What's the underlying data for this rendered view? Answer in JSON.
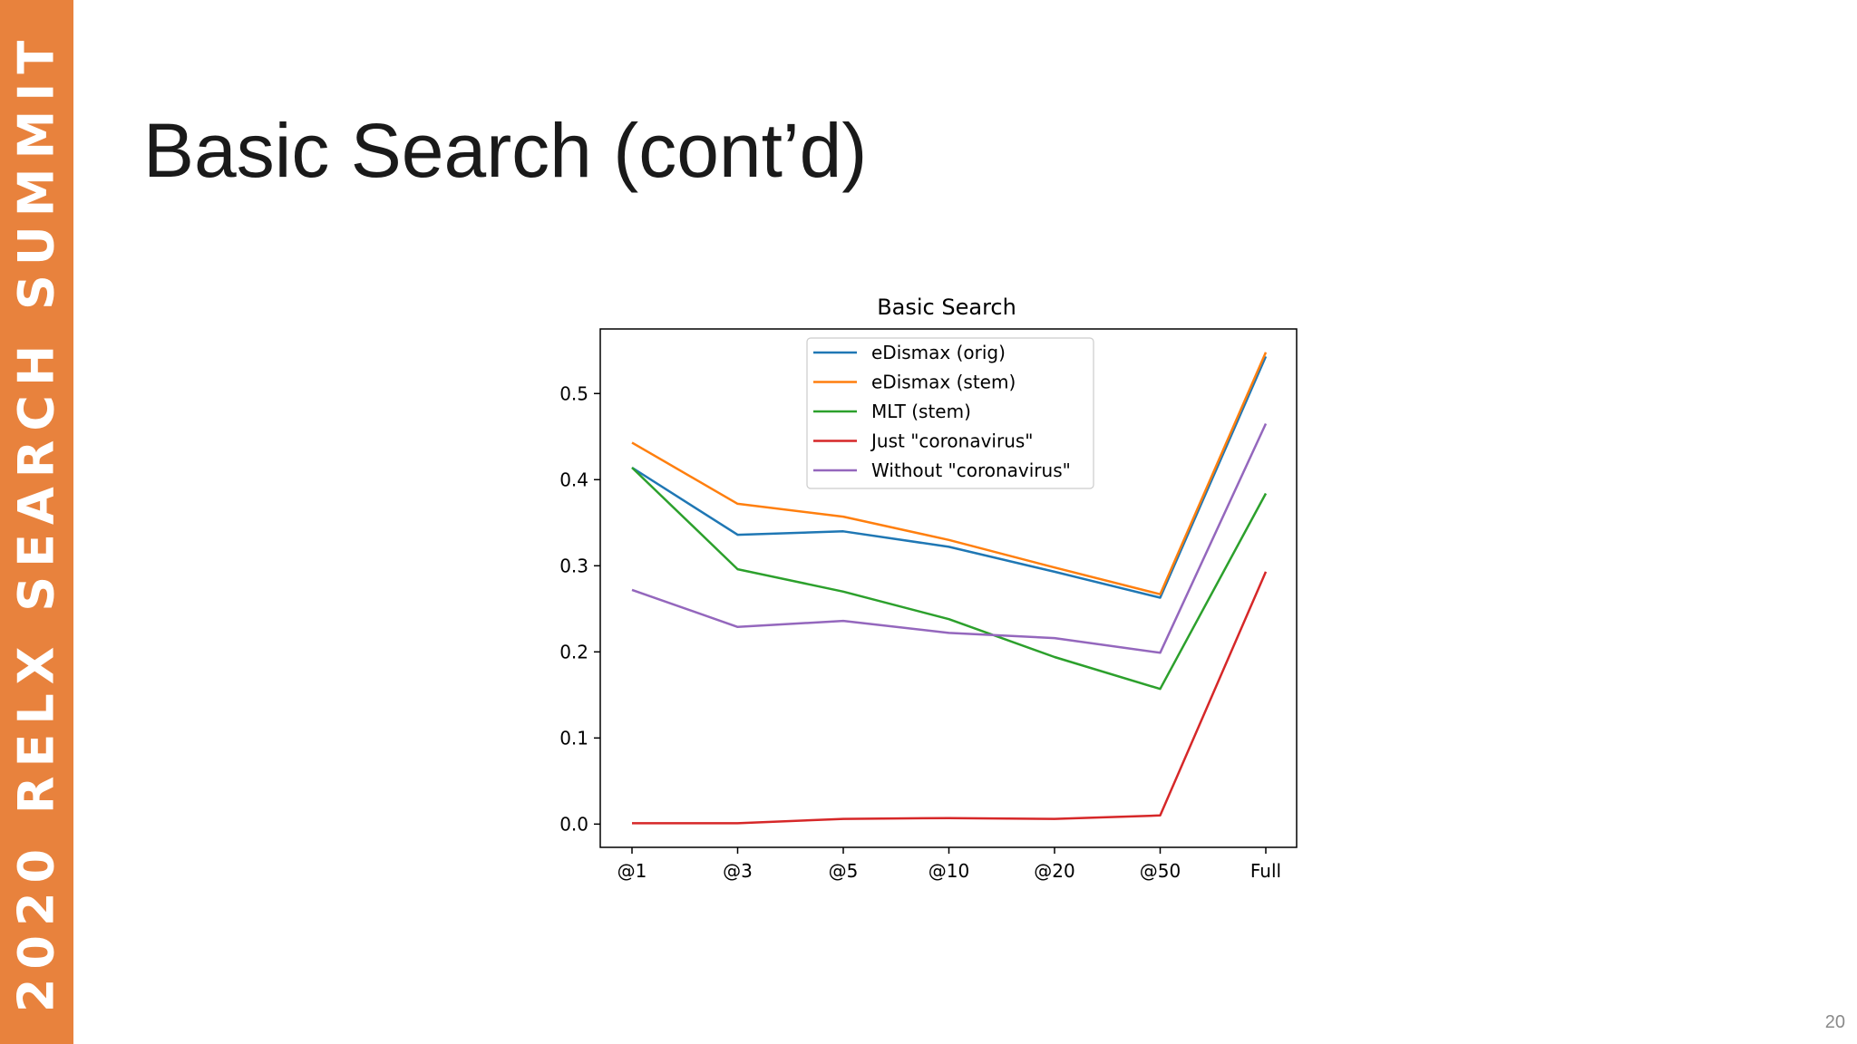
{
  "sidebar": {
    "text": "2020 RELX SEARCH SUMMIT",
    "color": "#e8823d"
  },
  "slide": {
    "title": "Basic Search (cont’d)",
    "page_number": "20"
  },
  "chart_data": {
    "type": "line",
    "title": "Basic Search",
    "xlabel": "",
    "ylabel": "",
    "categories": [
      "@1",
      "@3",
      "@5",
      "@10",
      "@20",
      "@50",
      "Full"
    ],
    "yticks": [
      "0.0",
      "0.1",
      "0.2",
      "0.3",
      "0.4",
      "0.5"
    ],
    "ylim": [
      -0.027,
      0.575
    ],
    "grid": false,
    "legend_position": "top-center",
    "series": [
      {
        "name": "eDismax (orig)",
        "color": "#1f77b4",
        "values": [
          0.414,
          0.336,
          0.34,
          0.322,
          0.293,
          0.263,
          0.543
        ]
      },
      {
        "name": "eDismax (stem)",
        "color": "#ff7f0e",
        "values": [
          0.443,
          0.372,
          0.357,
          0.33,
          0.298,
          0.267,
          0.548
        ]
      },
      {
        "name": "MLT (stem)",
        "color": "#2ca02c",
        "values": [
          0.414,
          0.296,
          0.27,
          0.238,
          0.194,
          0.157,
          0.384
        ]
      },
      {
        "name": "Just \"coronavirus\"",
        "color": "#d62728",
        "values": [
          0.001,
          0.001,
          0.006,
          0.007,
          0.006,
          0.01,
          0.293
        ]
      },
      {
        "name": "Without \"coronavirus\"",
        "color": "#9467bd",
        "values": [
          0.272,
          0.229,
          0.236,
          0.222,
          0.216,
          0.199,
          0.465
        ]
      }
    ]
  }
}
